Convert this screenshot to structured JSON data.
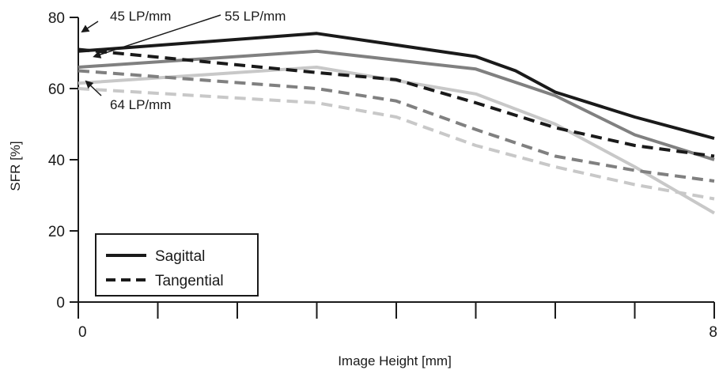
{
  "chart_data": {
    "type": "line",
    "xlabel": "Image Height [mm]",
    "ylabel": "SFR [%]",
    "xlim": [
      0,
      8
    ],
    "ylim": [
      0,
      80
    ],
    "x_ticks": [
      0,
      1,
      2,
      3,
      4,
      5,
      6,
      7,
      8
    ],
    "x_tick_labels": [
      "0",
      "",
      "",
      "",
      "",
      "",
      "",
      "",
      "8"
    ],
    "y_ticks": [
      0,
      20,
      40,
      60,
      80
    ],
    "y_tick_labels": [
      "0",
      "20",
      "40",
      "60",
      "80"
    ],
    "grid": false,
    "legend": {
      "position": "bottom-left",
      "entries": [
        {
          "label": "Sagittal",
          "style": "solid"
        },
        {
          "label": "Tangential",
          "style": "dashed"
        }
      ]
    },
    "annotations": [
      {
        "text": "45 LP/mm",
        "arrow_to": [
          0.05,
          76
        ]
      },
      {
        "text": "55 LP/mm",
        "arrow_to": [
          0.2,
          69
        ]
      },
      {
        "text": "64 LP/mm",
        "arrow_to": [
          0.1,
          62
        ]
      }
    ],
    "series": [
      {
        "frequency": "45 LP/mm",
        "style": "solid",
        "color": "#1a1a1a",
        "x": [
          0,
          3,
          5,
          5.5,
          6,
          7,
          8
        ],
        "y": [
          70.5,
          75.5,
          69,
          65,
          59,
          52,
          46
        ]
      },
      {
        "frequency": "55 LP/mm",
        "style": "solid",
        "color": "#808080",
        "x": [
          0,
          3,
          5,
          6,
          7,
          8
        ],
        "y": [
          66,
          70.5,
          65.5,
          58,
          47,
          40
        ]
      },
      {
        "frequency": "64 LP/mm",
        "style": "solid",
        "color": "#c8c8c8",
        "x": [
          0,
          3,
          5,
          6,
          7,
          8
        ],
        "y": [
          61.5,
          66,
          58.5,
          50,
          38,
          25
        ]
      },
      {
        "frequency": "45 LP/mm",
        "style": "dashed",
        "color": "#1a1a1a",
        "x": [
          0,
          3,
          4,
          5,
          6,
          7,
          8
        ],
        "y": [
          71,
          64.5,
          62.5,
          56,
          49,
          44,
          41
        ]
      },
      {
        "frequency": "55 LP/mm",
        "style": "dashed",
        "color": "#808080",
        "x": [
          0,
          3,
          4,
          5,
          6,
          7,
          8
        ],
        "y": [
          65,
          60,
          56.5,
          48.5,
          41,
          37,
          34
        ]
      },
      {
        "frequency": "64 LP/mm",
        "style": "dashed",
        "color": "#c8c8c8",
        "x": [
          0,
          3,
          4,
          5,
          6,
          7,
          8
        ],
        "y": [
          60,
          56,
          52,
          44,
          38,
          33,
          29
        ]
      }
    ]
  }
}
